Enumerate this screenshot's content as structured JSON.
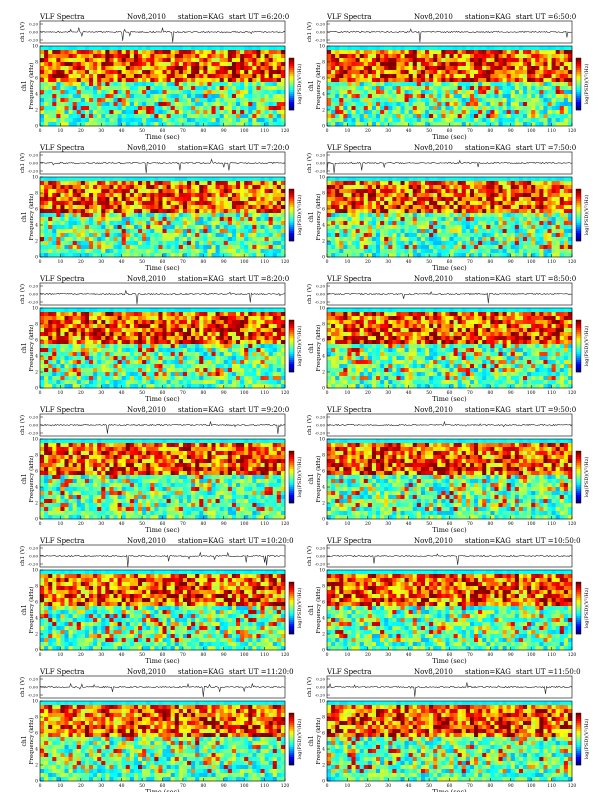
{
  "page": {
    "title": "VLF Spectra",
    "date": "Nov8,2010",
    "station": "station=KAG"
  },
  "colors": {
    "waveform": "#222222",
    "frame": "#000000"
  },
  "chart_data": [
    {
      "type": "heatmap",
      "title": "VLF Spectra",
      "date": "Nov8,2010",
      "station": "station=KAG",
      "start": "start  UT =6:20:0",
      "channel": "ch1",
      "xlabel": "Time (sec)",
      "ylabel": "Frequency (kHz)",
      "wave_ylabel": "ch1 (V)",
      "colorbar_label": "log(PSD)(V²/Hz)",
      "xlim": [
        0,
        120
      ],
      "ylim": [
        0,
        10
      ],
      "xticks": [
        "0",
        "10",
        "20",
        "30",
        "40",
        "50",
        "60",
        "70",
        "80",
        "90",
        "100",
        "110",
        "120"
      ],
      "yticks": [
        "0",
        "2",
        "4",
        "6",
        "8",
        "10"
      ],
      "wave_yticks": [
        "0.20",
        "0.00",
        "-0.20"
      ],
      "seed": 11
    },
    {
      "type": "heatmap",
      "title": "VLF Spectra",
      "date": "Nov8,2010",
      "station": "station=KAG",
      "start": "start  UT =6:50:0",
      "channel": "ch1",
      "xlabel": "Time (sec)",
      "ylabel": "Frequency (kHz)",
      "wave_ylabel": "ch1 (V)",
      "colorbar_label": "log(PSD)(V²/Hz)",
      "xlim": [
        0,
        120
      ],
      "ylim": [
        0,
        10
      ],
      "xticks": [
        "0",
        "10",
        "20",
        "30",
        "40",
        "50",
        "60",
        "70",
        "80",
        "90",
        "100",
        "110",
        "120"
      ],
      "yticks": [
        "0",
        "2",
        "4",
        "6",
        "8",
        "10"
      ],
      "wave_yticks": [
        "0.20",
        "0.00",
        "-0.20"
      ],
      "seed": 23
    },
    {
      "type": "heatmap",
      "title": "VLF Spectra",
      "date": "Nov8,2010",
      "station": "station=KAG",
      "start": "start  UT =7:20:0",
      "channel": "ch1",
      "xlabel": "Time (sec)",
      "ylabel": "Frequency (kHz)",
      "wave_ylabel": "ch1 (V)",
      "colorbar_label": "log(PSD)(V²/Hz)",
      "xlim": [
        0,
        120
      ],
      "ylim": [
        0,
        10
      ],
      "xticks": [
        "0",
        "10",
        "20",
        "30",
        "40",
        "50",
        "60",
        "70",
        "80",
        "90",
        "100",
        "110",
        "120"
      ],
      "yticks": [
        "0",
        "2",
        "4",
        "6",
        "8",
        "10"
      ],
      "wave_yticks": [
        "0.20",
        "0.00",
        "-0.20"
      ],
      "seed": 37
    },
    {
      "type": "heatmap",
      "title": "VLF Spectra",
      "date": "Nov8,2010",
      "station": "station=KAG",
      "start": "start  UT =7:50:0",
      "channel": "ch1",
      "xlabel": "Time (sec)",
      "ylabel": "Frequency (kHz)",
      "wave_ylabel": "ch1 (V)",
      "colorbar_label": "log(PSD)(V²/Hz)",
      "xlim": [
        0,
        120
      ],
      "ylim": [
        0,
        10
      ],
      "xticks": [
        "0",
        "10",
        "20",
        "30",
        "40",
        "50",
        "60",
        "70",
        "80",
        "90",
        "100",
        "110",
        "120"
      ],
      "yticks": [
        "0",
        "2",
        "4",
        "6",
        "8",
        "10"
      ],
      "wave_yticks": [
        "0.20",
        "0.00",
        "-0.20"
      ],
      "seed": 41
    },
    {
      "type": "heatmap",
      "title": "VLF Spectra",
      "date": "Nov8,2010",
      "station": "station=KAG",
      "start": "start  UT =8:20:0",
      "channel": "ch1",
      "xlabel": "Time (sec)",
      "ylabel": "Frequency (kHz)",
      "wave_ylabel": "ch1 (V)",
      "colorbar_label": "log(PSD)(V²/Hz)",
      "xlim": [
        0,
        120
      ],
      "ylim": [
        0,
        10
      ],
      "xticks": [
        "0",
        "10",
        "20",
        "30",
        "40",
        "50",
        "60",
        "70",
        "80",
        "90",
        "100",
        "110",
        "120"
      ],
      "yticks": [
        "0",
        "2",
        "4",
        "6",
        "8",
        "10"
      ],
      "wave_yticks": [
        "0.20",
        "0.00",
        "-0.20"
      ],
      "seed": 53
    },
    {
      "type": "heatmap",
      "title": "VLF Spectra",
      "date": "Nov8,2010",
      "station": "station=KAG",
      "start": "start  UT =8:50:0",
      "channel": "ch1",
      "xlabel": "Time (sec)",
      "ylabel": "Frequency (kHz)",
      "wave_ylabel": "ch1 (V)",
      "colorbar_label": "log(PSD)(V²/Hz)",
      "xlim": [
        0,
        120
      ],
      "ylim": [
        0,
        10
      ],
      "xticks": [
        "0",
        "10",
        "20",
        "30",
        "40",
        "50",
        "60",
        "70",
        "80",
        "90",
        "100",
        "110",
        "120"
      ],
      "yticks": [
        "0",
        "2",
        "4",
        "6",
        "8",
        "10"
      ],
      "wave_yticks": [
        "0.20",
        "0.00",
        "-0.20"
      ],
      "seed": 67
    },
    {
      "type": "heatmap",
      "title": "VLF Spectra",
      "date": "Nov8,2010",
      "station": "station=KAG",
      "start": "start  UT =9:20:0",
      "channel": "ch1",
      "xlabel": "Time (sec)",
      "ylabel": "Frequency (kHz)",
      "wave_ylabel": "ch1 (V)",
      "colorbar_label": "log(PSD)(V²/Hz)",
      "xlim": [
        0,
        120
      ],
      "ylim": [
        0,
        10
      ],
      "xticks": [
        "0",
        "10",
        "20",
        "30",
        "40",
        "50",
        "60",
        "70",
        "80",
        "90",
        "100",
        "110",
        "120"
      ],
      "yticks": [
        "0",
        "2",
        "4",
        "6",
        "8",
        "10"
      ],
      "wave_yticks": [
        "0.20",
        "0.00",
        "-0.20"
      ],
      "seed": 71
    },
    {
      "type": "heatmap",
      "title": "VLF Spectra",
      "date": "Nov8,2010",
      "station": "station=KAG",
      "start": "start  UT =9:50:0",
      "channel": "ch1",
      "xlabel": "Time (sec)",
      "ylabel": "Frequency (kHz)",
      "wave_ylabel": "ch1 (V)",
      "colorbar_label": "log(PSD)(V²/Hz)",
      "xlim": [
        0,
        120
      ],
      "ylim": [
        0,
        10
      ],
      "xticks": [
        "0",
        "10",
        "20",
        "30",
        "40",
        "50",
        "60",
        "70",
        "80",
        "90",
        "100",
        "110",
        "120"
      ],
      "yticks": [
        "0",
        "2",
        "4",
        "6",
        "8",
        "10"
      ],
      "wave_yticks": [
        "0.20",
        "0.00",
        "-0.20"
      ],
      "seed": 83
    },
    {
      "type": "heatmap",
      "title": "VLF Spectra",
      "date": "Nov8,2010",
      "station": "station=KAG",
      "start": "start  UT =10:20:0",
      "channel": "ch1",
      "xlabel": "Time (sec)",
      "ylabel": "Frequency (kHz)",
      "wave_ylabel": "ch1 (V)",
      "colorbar_label": "log(PSD)(V²/Hz)",
      "xlim": [
        0,
        120
      ],
      "ylim": [
        0,
        10
      ],
      "xticks": [
        "0",
        "10",
        "20",
        "30",
        "40",
        "50",
        "60",
        "70",
        "80",
        "90",
        "100",
        "110",
        "120"
      ],
      "yticks": [
        "0",
        "2",
        "4",
        "6",
        "8",
        "10"
      ],
      "wave_yticks": [
        "0.20",
        "0.00",
        "-0.20"
      ],
      "seed": 97
    },
    {
      "type": "heatmap",
      "title": "VLF Spectra",
      "date": "Nov8,2010",
      "station": "station=KAG",
      "start": "start  UT =10:50:0",
      "channel": "ch1",
      "xlabel": "Time (sec)",
      "ylabel": "Frequency (kHz)",
      "wave_ylabel": "ch1 (V)",
      "colorbar_label": "log(PSD)(V²/Hz)",
      "xlim": [
        0,
        120
      ],
      "ylim": [
        0,
        10
      ],
      "xticks": [
        "0",
        "10",
        "20",
        "30",
        "40",
        "50",
        "60",
        "70",
        "80",
        "90",
        "100",
        "110",
        "120"
      ],
      "yticks": [
        "0",
        "2",
        "4",
        "6",
        "8",
        "10"
      ],
      "wave_yticks": [
        "0.20",
        "0.00",
        "-0.20"
      ],
      "seed": 101
    },
    {
      "type": "heatmap",
      "title": "VLF Spectra",
      "date": "Nov8,2010",
      "station": "station=KAG",
      "start": "start  UT =11:20:0",
      "channel": "ch1",
      "xlabel": "Time (sec)",
      "ylabel": "Frequency (kHz)",
      "wave_ylabel": "ch1 (V)",
      "colorbar_label": "log(PSD)(V²/Hz)",
      "xlim": [
        0,
        120
      ],
      "ylim": [
        0,
        10
      ],
      "xticks": [
        "0",
        "10",
        "20",
        "30",
        "40",
        "50",
        "60",
        "70",
        "80",
        "90",
        "100",
        "110",
        "120"
      ],
      "yticks": [
        "0",
        "2",
        "4",
        "6",
        "8",
        "10"
      ],
      "wave_yticks": [
        "0.20",
        "0.00",
        "-0.20"
      ],
      "seed": 113
    },
    {
      "type": "heatmap",
      "title": "VLF Spectra",
      "date": "Nov8,2010",
      "station": "station=KAG",
      "start": "start  UT =11:50:0",
      "channel": "ch1",
      "xlabel": "Time (sec)",
      "ylabel": "Frequency (kHz)",
      "wave_ylabel": "ch1 (V)",
      "colorbar_label": "log(PSD)(V²/Hz)",
      "xlim": [
        0,
        120
      ],
      "ylim": [
        0,
        10
      ],
      "xticks": [
        "0",
        "10",
        "20",
        "30",
        "40",
        "50",
        "60",
        "70",
        "80",
        "90",
        "100",
        "110",
        "120"
      ],
      "yticks": [
        "0",
        "2",
        "4",
        "6",
        "8",
        "10"
      ],
      "wave_yticks": [
        "0.20",
        "0.00",
        "-0.20"
      ],
      "seed": 127
    }
  ]
}
